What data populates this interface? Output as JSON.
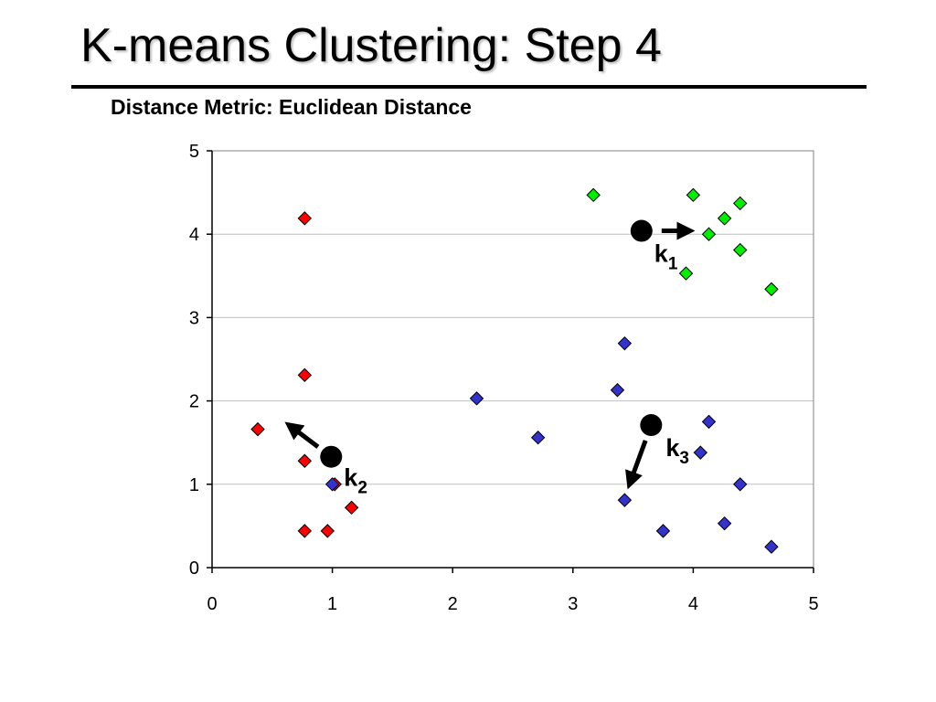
{
  "slide": {
    "title": "K-means Clustering: Step 4",
    "subtitle": "Distance Metric: Euclidean Distance"
  },
  "colors": {
    "cluster_1": "#00ee00",
    "cluster_2": "#ff0000",
    "cluster_3": "#3333cc",
    "centroid": "#000000",
    "gridline": "#c0c0c0",
    "plot_border": "#808080"
  },
  "chart_data": {
    "type": "scatter",
    "title": "",
    "xlabel": "",
    "ylabel": "",
    "xlim": [
      0,
      5
    ],
    "ylim": [
      0,
      5
    ],
    "x_ticks": [
      0,
      1,
      2,
      3,
      4,
      5
    ],
    "y_ticks": [
      0,
      1,
      2,
      3,
      4,
      5
    ],
    "grid": "horizontal",
    "legend": "none",
    "marker": "diamond",
    "series": [
      {
        "cluster": "k1",
        "color": "#00ee00",
        "points": [
          [
            3.17,
            4.47
          ],
          [
            4.0,
            4.47
          ],
          [
            4.39,
            4.37
          ],
          [
            4.26,
            4.19
          ],
          [
            4.13,
            4.0
          ],
          [
            4.39,
            3.81
          ],
          [
            3.94,
            3.53
          ],
          [
            4.65,
            3.34
          ]
        ]
      },
      {
        "cluster": "k2",
        "color": "#ff0000",
        "points": [
          [
            0.77,
            4.19
          ],
          [
            0.77,
            2.31
          ],
          [
            0.38,
            1.66
          ],
          [
            0.77,
            1.28
          ],
          [
            1.02,
            1.0
          ],
          [
            1.16,
            0.72
          ],
          [
            0.77,
            0.44
          ],
          [
            0.96,
            0.44
          ]
        ]
      },
      {
        "cluster": "k3",
        "color": "#3333cc",
        "points": [
          [
            1.0,
            1.0
          ],
          [
            2.2,
            2.03
          ],
          [
            2.71,
            1.56
          ],
          [
            3.43,
            2.69
          ],
          [
            3.37,
            2.13
          ],
          [
            4.13,
            1.75
          ],
          [
            4.06,
            1.38
          ],
          [
            4.39,
            1.0
          ],
          [
            3.43,
            0.81
          ],
          [
            3.75,
            0.44
          ],
          [
            4.26,
            0.53
          ],
          [
            4.65,
            0.25
          ]
        ]
      }
    ],
    "centroids": [
      {
        "label": "k",
        "subscript": "1",
        "x": 3.57,
        "y": 4.04,
        "arrow_to": [
          3.97,
          4.04
        ]
      },
      {
        "label": "k",
        "subscript": "2",
        "x": 0.99,
        "y": 1.33,
        "arrow_to": [
          0.64,
          1.71
        ]
      },
      {
        "label": "k",
        "subscript": "3",
        "x": 3.65,
        "y": 1.71,
        "arrow_to": [
          3.47,
          1.0
        ]
      }
    ]
  }
}
